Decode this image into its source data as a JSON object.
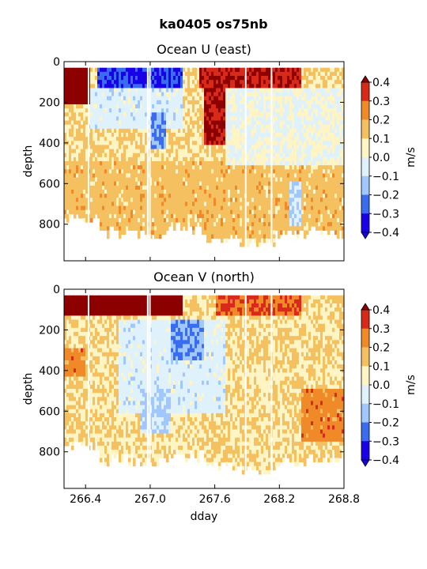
{
  "figure_title": "ka0405 os75nb",
  "chart_data": [
    {
      "type": "heatmap",
      "title": "Ocean U (east)",
      "xlabel": "",
      "ylabel": "depth",
      "xlim": [
        266.2,
        268.8
      ],
      "ylim": [
        980,
        0
      ],
      "y_ticks": [
        "0",
        "200",
        "400",
        "600",
        "800"
      ],
      "y_tick_values": [
        0,
        200,
        400,
        600,
        800
      ],
      "x_tick_values": [
        266.4,
        267.0,
        267.6,
        268.2,
        268.8
      ],
      "colorbar": {
        "label": "m/s",
        "levels": [
          -0.4,
          -0.3,
          -0.2,
          -0.1,
          0.0,
          0.1,
          0.2,
          0.3,
          0.4
        ],
        "tick_labels": [
          "0.4",
          "0.3",
          "0.2",
          "0.1",
          "0.0",
          "−0.1",
          "−0.2",
          "−0.3",
          "−0.4"
        ],
        "colors": [
          "#1a00e6",
          "#3a6cf0",
          "#a0c8ff",
          "#dff2fc",
          "#fff5c4",
          "#f5c060",
          "#f08a28",
          "#d82a1a",
          "#8c0000"
        ]
      },
      "depth_bottom_approx": [
        760,
        830,
        840,
        810,
        860,
        880,
        840,
        830
      ],
      "regions": [
        {
          "x": [
            266.2,
            266.45
          ],
          "y": [
            30,
            210
          ],
          "value": 0.4
        },
        {
          "x": [
            266.5,
            267.3
          ],
          "y": [
            30,
            130
          ],
          "value": -0.4
        },
        {
          "x": [
            266.45,
            267.3
          ],
          "y": [
            130,
            330
          ],
          "value": -0.15
        },
        {
          "x": [
            267.0,
            267.15
          ],
          "y": [
            260,
            420
          ],
          "value": -0.3
        },
        {
          "x": [
            267.5,
            267.7
          ],
          "y": [
            130,
            400
          ],
          "value": 0.3
        },
        {
          "x": [
            267.45,
            268.4
          ],
          "y": [
            30,
            130
          ],
          "value": 0.3
        },
        {
          "x": [
            267.7,
            268.8
          ],
          "y": [
            130,
            500
          ],
          "value": -0.1
        },
        {
          "x": [
            266.2,
            268.8
          ],
          "y": [
            500,
            860
          ],
          "value": 0.05
        },
        {
          "x": [
            268.3,
            268.4
          ],
          "y": [
            600,
            800
          ],
          "value": -0.2
        }
      ]
    },
    {
      "type": "heatmap",
      "title": "Ocean V (north)",
      "xlabel": "dday",
      "ylabel": "depth",
      "xlim": [
        266.2,
        268.8
      ],
      "ylim": [
        980,
        0
      ],
      "y_ticks": [
        "0",
        "200",
        "400",
        "600",
        "800"
      ],
      "y_tick_values": [
        0,
        200,
        400,
        600,
        800
      ],
      "x_ticks": [
        "266.4",
        "267.0",
        "267.6",
        "268.2",
        "268.8"
      ],
      "x_tick_values": [
        266.4,
        267.0,
        267.6,
        268.2,
        268.8
      ],
      "colorbar": {
        "label": "m/s",
        "levels": [
          -0.4,
          -0.3,
          -0.2,
          -0.1,
          0.0,
          0.1,
          0.2,
          0.3,
          0.4
        ],
        "tick_labels": [
          "0.4",
          "0.3",
          "0.2",
          "0.1",
          "0.0",
          "−0.1",
          "−0.2",
          "−0.3",
          "−0.4"
        ],
        "colors": [
          "#1a00e6",
          "#3a6cf0",
          "#a0c8ff",
          "#dff2fc",
          "#fff5c4",
          "#f5c060",
          "#f08a28",
          "#d82a1a",
          "#8c0000"
        ]
      },
      "depth_bottom_approx": [
        760,
        830,
        840,
        810,
        860,
        880,
        840,
        830
      ],
      "regions": [
        {
          "x": [
            266.2,
            267.3
          ],
          "y": [
            30,
            120
          ],
          "value": 0.4
        },
        {
          "x": [
            267.6,
            268.4
          ],
          "y": [
            30,
            120
          ],
          "value": 0.2
        },
        {
          "x": [
            267.2,
            267.5
          ],
          "y": [
            150,
            350
          ],
          "value": -0.3
        },
        {
          "x": [
            266.7,
            267.7
          ],
          "y": [
            150,
            600
          ],
          "value": -0.15
        },
        {
          "x": [
            266.2,
            266.4
          ],
          "y": [
            300,
            420
          ],
          "value": 0.15
        },
        {
          "x": [
            268.4,
            268.8
          ],
          "y": [
            500,
            750
          ],
          "value": 0.15
        },
        {
          "x": [
            266.9,
            267.2
          ],
          "y": [
            500,
            700
          ],
          "value": -0.2
        }
      ]
    }
  ]
}
